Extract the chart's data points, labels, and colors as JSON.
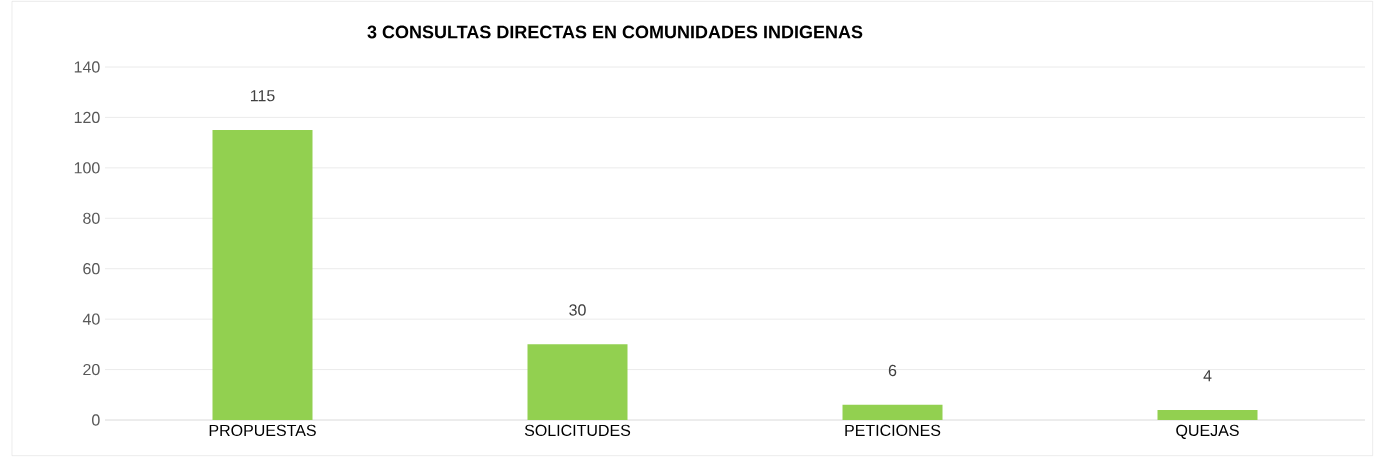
{
  "chart_data": {
    "type": "bar",
    "title": "3 CONSULTAS DIRECTAS EN COMUNIDADES INDIGENAS",
    "categories": [
      "PROPUESTAS",
      "SOLICITUDES",
      "PETICIONES",
      "QUEJAS"
    ],
    "values": [
      115,
      30,
      6,
      4
    ],
    "color": "#92d050",
    "ylim": [
      0,
      140
    ],
    "yticks": [
      0,
      20,
      40,
      60,
      80,
      100,
      120,
      140
    ],
    "grid": "y",
    "data_labels": true
  }
}
